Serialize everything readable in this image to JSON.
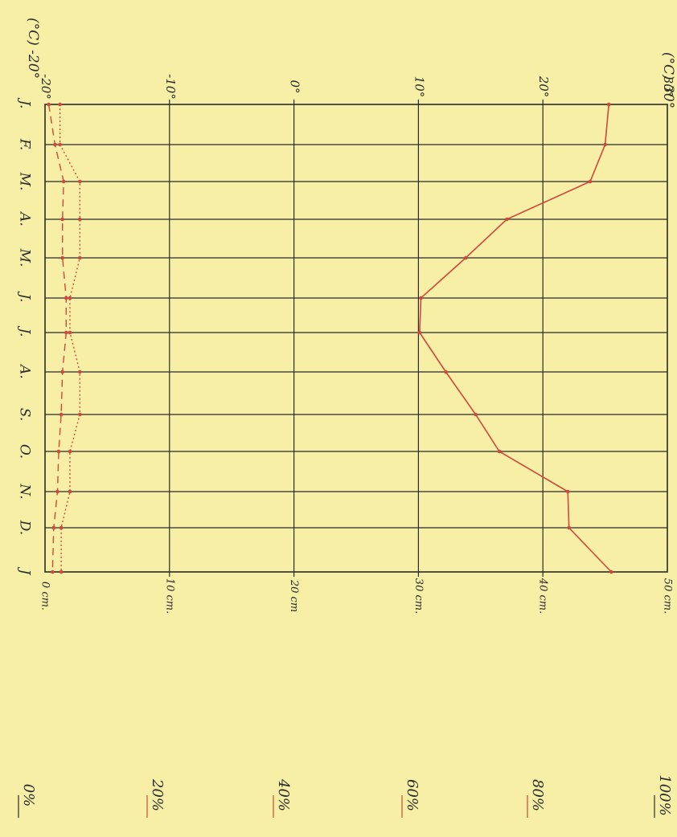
{
  "page": {
    "background": "#f7efa6",
    "ink": "#2a2a2a",
    "red": "#d2483a"
  },
  "labels": {
    "temp_unit_top": "(°C) 30°",
    "temp_unit_bottom": "(°C) -20°",
    "humidity_ticks": [
      "100%",
      "80%",
      "60%",
      "40%",
      "20%",
      "0%"
    ]
  },
  "chart_data": {
    "type": "line",
    "orientation": "rotated 90° clockwise",
    "categories": [
      "J.",
      "F.",
      "M.",
      "A.",
      "M.",
      "J.",
      "J.",
      "A.",
      "S.",
      "O.",
      "N.",
      "D.",
      "J"
    ],
    "temperature_axis": {
      "unit_label": "(°C)",
      "range": [
        -20,
        30
      ],
      "tick_values": [
        -20,
        -10,
        0,
        10,
        20,
        30
      ],
      "tick_labels": [
        "-20°",
        "-10°",
        "0°",
        "10°",
        "20°",
        "30°"
      ]
    },
    "precipitation_axis": {
      "range": [
        0,
        50
      ],
      "tick_values": [
        0,
        10,
        20,
        30,
        40,
        50
      ],
      "tick_labels": [
        "0 cm.",
        "10 cm.",
        "20 cm",
        "30 cm.",
        "40 cm.",
        "50 cm."
      ]
    },
    "humidity_axis": {
      "range": [
        0,
        100
      ],
      "tick_labels": [
        "0%",
        "20%",
        "40%",
        "60%",
        "80%",
        "100%"
      ]
    },
    "grid": true,
    "series": [
      {
        "style": "solid",
        "color": "#d2483a",
        "axis": "precipitation",
        "values": [
          45.3,
          45.0,
          43.8,
          37.1,
          33.8,
          30.2,
          30.1,
          32.2,
          34.6,
          36.5,
          42.0,
          42.1,
          45.5
        ]
      },
      {
        "style": "dashed",
        "color": "#d2483a",
        "axis": "temperature",
        "values": [
          -19.7,
          -19.2,
          -18.5,
          -18.6,
          -18.6,
          -18.3,
          -18.3,
          -18.6,
          -18.7,
          -18.9,
          -19.0,
          -19.3,
          -19.4
        ]
      },
      {
        "style": "dotted",
        "color": "#d2483a",
        "axis": "temperature",
        "values": [
          -18.8,
          -18.8,
          -17.2,
          -17.2,
          -17.2,
          -18.0,
          -18.0,
          -17.2,
          -17.2,
          -18.0,
          -18.0,
          -18.7,
          -18.7
        ]
      }
    ]
  }
}
